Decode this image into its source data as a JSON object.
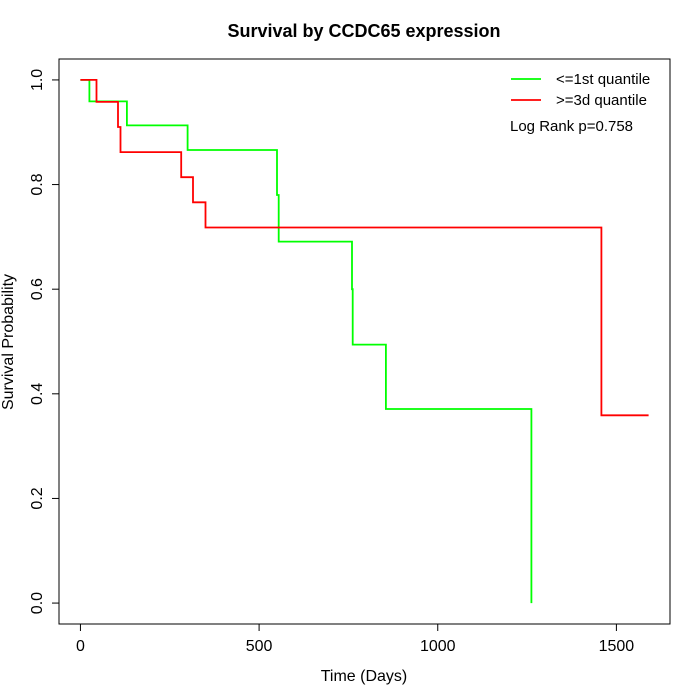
{
  "chart_data": {
    "type": "line",
    "title": "Survival by CCDC65 expression",
    "xlabel": "Time (Days)",
    "ylabel": "Survival Probability",
    "xlim": [
      -60,
      1650
    ],
    "ylim": [
      -0.04,
      1.04
    ],
    "xticks": [
      0,
      500,
      1000,
      1500
    ],
    "xtick_labels": [
      "0",
      "500",
      "1000",
      "1500"
    ],
    "yticks": [
      0.0,
      0.2,
      0.4,
      0.6,
      0.8,
      1.0
    ],
    "ytick_labels": [
      "0.0",
      "0.2",
      "0.4",
      "0.6",
      "0.8",
      "1.0"
    ],
    "grid": false,
    "legend_position": "top-right",
    "annotation": "Log Rank p=0.758",
    "series": [
      {
        "name": "<=1st quantile",
        "color": "#00ff00",
        "step_points": [
          [
            0,
            1.0
          ],
          [
            25,
            1.0
          ],
          [
            25,
            0.959
          ],
          [
            130,
            0.959
          ],
          [
            130,
            0.913
          ],
          [
            300,
            0.913
          ],
          [
            300,
            0.866
          ],
          [
            550,
            0.866
          ],
          [
            550,
            0.78
          ],
          [
            555,
            0.78
          ],
          [
            555,
            0.691
          ],
          [
            760,
            0.691
          ],
          [
            760,
            0.6
          ],
          [
            762,
            0.6
          ],
          [
            762,
            0.494
          ],
          [
            855,
            0.494
          ],
          [
            855,
            0.371
          ],
          [
            1262,
            0.371
          ],
          [
            1262,
            0.0
          ]
        ]
      },
      {
        "name": ">=3d quantile",
        "color": "#ff0000",
        "step_points": [
          [
            0,
            1.0
          ],
          [
            45,
            1.0
          ],
          [
            45,
            0.958
          ],
          [
            105,
            0.958
          ],
          [
            105,
            0.91
          ],
          [
            112,
            0.91
          ],
          [
            112,
            0.862
          ],
          [
            282,
            0.862
          ],
          [
            282,
            0.814
          ],
          [
            315,
            0.814
          ],
          [
            315,
            0.766
          ],
          [
            350,
            0.766
          ],
          [
            350,
            0.718
          ],
          [
            1458,
            0.718
          ],
          [
            1458,
            0.359
          ],
          [
            1590,
            0.359
          ]
        ]
      }
    ]
  }
}
